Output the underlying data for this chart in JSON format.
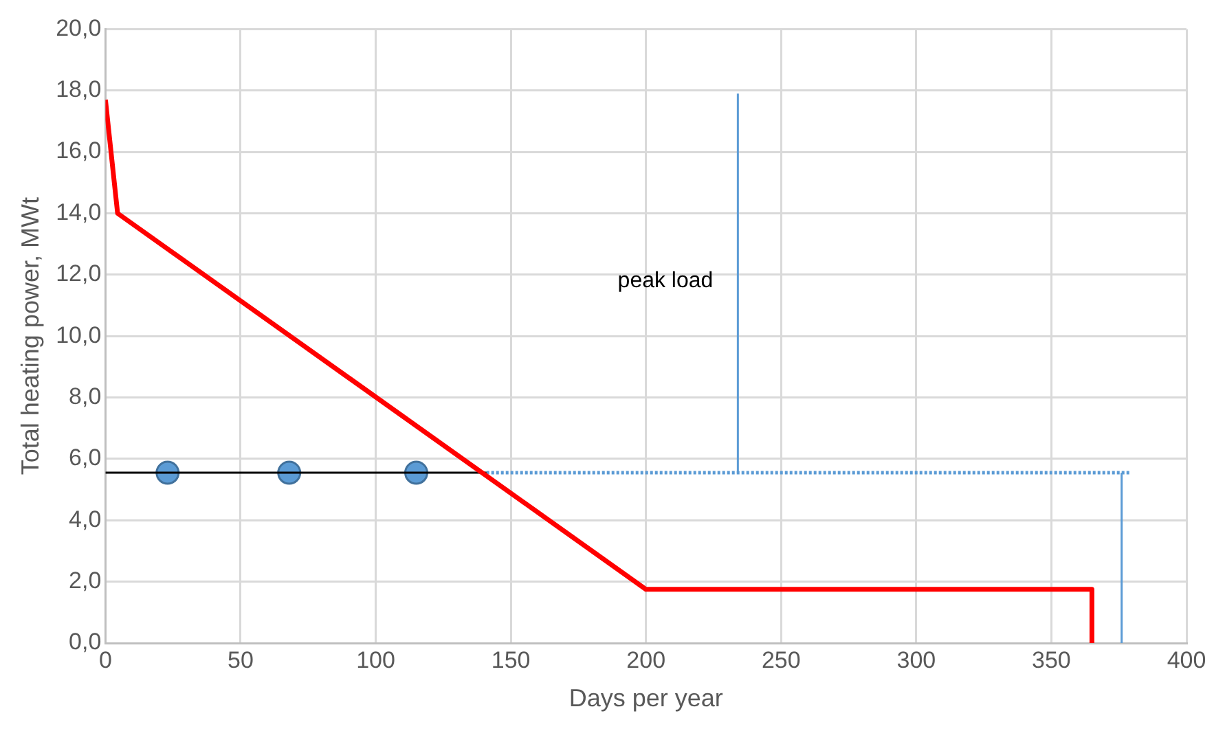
{
  "chart_data": {
    "type": "line",
    "xlabel": "Days per year",
    "ylabel": "Total heating power, MWt",
    "xlim": [
      0,
      400
    ],
    "xticks": [
      0,
      50,
      100,
      150,
      200,
      250,
      300,
      350,
      400
    ],
    "ylim": [
      0,
      20
    ],
    "yticks": [
      {
        "value": 0,
        "label": "0,0"
      },
      {
        "value": 2,
        "label": "2,0"
      },
      {
        "value": 4,
        "label": "4,0"
      },
      {
        "value": 6,
        "label": "6,0"
      },
      {
        "value": 8,
        "label": "8,0"
      },
      {
        "value": 10,
        "label": "10,0"
      },
      {
        "value": 12,
        "label": "12,0"
      },
      {
        "value": 14,
        "label": "14,0"
      },
      {
        "value": 16,
        "label": "16,0"
      },
      {
        "value": 18,
        "label": "18,0"
      },
      {
        "value": 20,
        "label": "20,0"
      }
    ],
    "grid": true,
    "legend": false,
    "series": [
      {
        "type": "line",
        "color": "#ff0000",
        "x": [
          0,
          4.5,
          200,
          365,
          365
        ],
        "values": [
          17.7,
          14,
          1.75,
          1.75,
          0
        ],
        "marker": "none"
      },
      {
        "type": "line",
        "color": "#000000",
        "x": [
          0,
          141
        ],
        "values": [
          5.55,
          5.55
        ],
        "marker": "none"
      },
      {
        "type": "line",
        "color": "#5b9bd5",
        "x": [
          141,
          379
        ],
        "values": [
          5.55,
          5.55
        ],
        "marker": "none",
        "line_style": "dotted"
      },
      {
        "type": "line",
        "color": "#5b9bd5",
        "x": [
          234,
          234
        ],
        "values": [
          5.55,
          17.9
        ],
        "marker": "none"
      },
      {
        "type": "line",
        "color": "#5b9bd5",
        "x": [
          376,
          376
        ],
        "values": [
          0,
          5.55
        ],
        "marker": "none"
      },
      {
        "type": "scatter",
        "color": "#5b9bd5",
        "x": [
          23,
          68,
          115
        ],
        "values": [
          5.55,
          5.55,
          5.55
        ],
        "marker": "circle"
      }
    ],
    "annotations": [
      {
        "text": "peak load",
        "x": 234,
        "y": 11.8
      }
    ]
  }
}
